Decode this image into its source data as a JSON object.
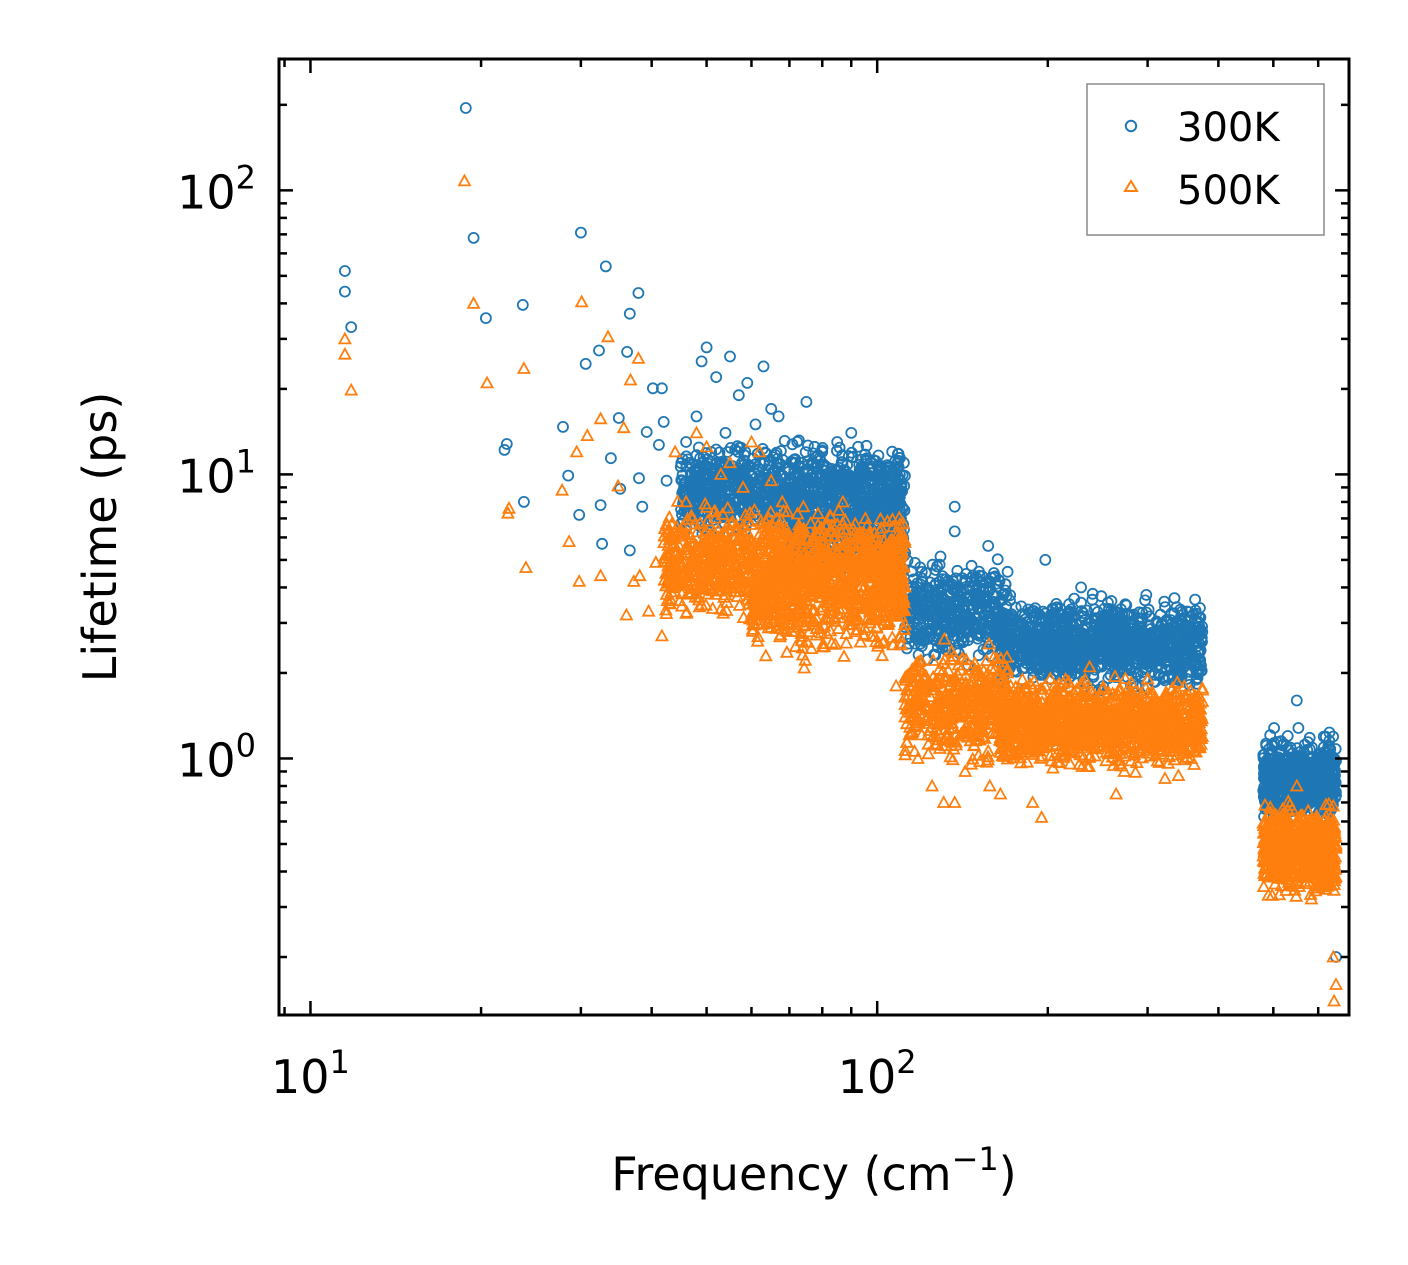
{
  "chart_data": {
    "type": "scatter",
    "title": "",
    "xlabel": "Frequency (cm",
    "xlabel_sup": "−1",
    "xlabel_close": ")",
    "ylabel": "Lifetime (ps)",
    "xscale": "log",
    "yscale": "log",
    "xlim": [
      8.8,
      680
    ],
    "ylim": [
      0.125,
      290
    ],
    "x_ticks": [
      {
        "value": 10,
        "base": "10",
        "exp": "1"
      },
      {
        "value": 100,
        "base": "10",
        "exp": "2"
      }
    ],
    "y_ticks": [
      {
        "value": 1,
        "base": "10",
        "exp": "0"
      },
      {
        "value": 10,
        "base": "10",
        "exp": "1"
      },
      {
        "value": 100,
        "base": "10",
        "exp": "2"
      }
    ],
    "legend_position": "top-right",
    "series": [
      {
        "name": "300K",
        "marker": "circle",
        "color": "#1f77b4",
        "points": [
          [
            11.5,
            52
          ],
          [
            11.5,
            44
          ],
          [
            11.8,
            33
          ],
          [
            18.8,
            195
          ],
          [
            19.4,
            68
          ],
          [
            20.4,
            35.5
          ],
          [
            22.2,
            12.8
          ],
          [
            22.0,
            12.2
          ],
          [
            23.7,
            39.5
          ],
          [
            23.8,
            8.0
          ],
          [
            27.9,
            14.7
          ],
          [
            28.5,
            9.9
          ],
          [
            29.8,
            7.2
          ],
          [
            30.0,
            71
          ],
          [
            30.6,
            24.5
          ],
          [
            32.3,
            27.3
          ],
          [
            32.5,
            7.8
          ],
          [
            32.7,
            5.7
          ],
          [
            33.2,
            54
          ],
          [
            33.9,
            11.4
          ],
          [
            35.0,
            15.8
          ],
          [
            35.2,
            8.9
          ],
          [
            36.2,
            27.0
          ],
          [
            36.6,
            36.8
          ],
          [
            36.6,
            5.4
          ],
          [
            37.9,
            43.5
          ],
          [
            38.0,
            9.7
          ],
          [
            38.5,
            7.7
          ],
          [
            39.2,
            14.1
          ],
          [
            40.2,
            20.1
          ],
          [
            41.2,
            12.7
          ],
          [
            41.7,
            20.1
          ],
          [
            42.0,
            15.3
          ],
          [
            42.5,
            9.5
          ],
          [
            46,
            13
          ],
          [
            47,
            10
          ],
          [
            48,
            16
          ],
          [
            49,
            25
          ],
          [
            50,
            28
          ],
          [
            52,
            22
          ],
          [
            54,
            14
          ],
          [
            55,
            26
          ],
          [
            57,
            19
          ],
          [
            59,
            21
          ],
          [
            61,
            15
          ],
          [
            63,
            24
          ],
          [
            65,
            17
          ],
          [
            67,
            16
          ],
          [
            71,
            11
          ],
          [
            75,
            18
          ],
          [
            80,
            12
          ],
          [
            85,
            13
          ],
          [
            90,
            14
          ],
          [
            95,
            10
          ],
          [
            100,
            8
          ],
          [
            104,
            7.7
          ],
          [
            107,
            7.2
          ],
          [
            112,
            5.3
          ],
          [
            120,
            4.3
          ],
          [
            126,
            3.4
          ],
          [
            131,
            4.0
          ],
          [
            137,
            7.7
          ],
          [
            137,
            6.3
          ],
          [
            143,
            3.0
          ],
          [
            150,
            4.3
          ],
          [
            157,
            5.6
          ],
          [
            165,
            3.6
          ],
          [
            172,
            2.5
          ],
          [
            180,
            2.9
          ],
          [
            188,
            3.3
          ],
          [
            198,
            5.0
          ],
          [
            207,
            3.5
          ],
          [
            217,
            2.9
          ],
          [
            229,
            4.0
          ],
          [
            240,
            3.8
          ],
          [
            253,
            3.2
          ],
          [
            267,
            3.0
          ],
          [
            281,
            3.2
          ],
          [
            297,
            3.6
          ],
          [
            313,
            2.6
          ],
          [
            330,
            2.3
          ],
          [
            348,
            2.1
          ],
          [
            366,
            2.0
          ],
          [
            490,
            0.9
          ],
          [
            510,
            0.8
          ],
          [
            530,
            1.2
          ],
          [
            550,
            1.6
          ],
          [
            570,
            0.9
          ],
          [
            590,
            0.8
          ],
          [
            610,
            1.0
          ],
          [
            625,
            1.1
          ],
          [
            638,
            0.9
          ],
          [
            645,
            0.2
          ]
        ],
        "bands": [
          {
            "x": [
              45,
              112
            ],
            "y": [
              5.5,
              14
            ],
            "n": 1100
          },
          {
            "x": [
              70,
              112
            ],
            "y": [
              3.8,
              9.5
            ],
            "n": 450
          },
          {
            "x": [
              112,
              170
            ],
            "y": [
              2.0,
              5.5
            ],
            "n": 450
          },
          {
            "x": [
              165,
              375
            ],
            "y": [
              1.6,
              4.0
            ],
            "n": 1200
          },
          {
            "x": [
              480,
              645
            ],
            "y": [
              0.55,
              1.3
            ],
            "n": 700
          }
        ]
      },
      {
        "name": "500K",
        "marker": "triangle",
        "color": "#ff7f0e",
        "points": [
          [
            11.5,
            30
          ],
          [
            11.5,
            26.5
          ],
          [
            11.8,
            19.8
          ],
          [
            18.7,
            108
          ],
          [
            19.4,
            40
          ],
          [
            20.5,
            21
          ],
          [
            22.3,
            7.3
          ],
          [
            22.4,
            7.6
          ],
          [
            23.8,
            23.6
          ],
          [
            24.0,
            4.7
          ],
          [
            27.8,
            8.8
          ],
          [
            28.6,
            5.8
          ],
          [
            29.5,
            12.0
          ],
          [
            29.8,
            4.2
          ],
          [
            30.1,
            40.5
          ],
          [
            30.8,
            13.7
          ],
          [
            32.5,
            15.7
          ],
          [
            32.5,
            4.4
          ],
          [
            33.5,
            30.5
          ],
          [
            34.9,
            9.1
          ],
          [
            35.7,
            14.6
          ],
          [
            36.1,
            3.2
          ],
          [
            36.7,
            21.5
          ],
          [
            37.2,
            4.2
          ],
          [
            37.9,
            25.6
          ],
          [
            38.1,
            4.4
          ],
          [
            39.5,
            3.3
          ],
          [
            40.7,
            4.9
          ],
          [
            41.7,
            2.7
          ],
          [
            42.5,
            6.7
          ],
          [
            43.0,
            3.5
          ],
          [
            44,
            12
          ],
          [
            46,
            8
          ],
          [
            48,
            14
          ],
          [
            50,
            12.5
          ],
          [
            53,
            10
          ],
          [
            55,
            11
          ],
          [
            58,
            9
          ],
          [
            60,
            13
          ],
          [
            62,
            12
          ],
          [
            65,
            9.5
          ],
          [
            68,
            8
          ],
          [
            73,
            6.5
          ],
          [
            78,
            5
          ],
          [
            83,
            4.5
          ],
          [
            88,
            4
          ],
          [
            92,
            3.5
          ],
          [
            97,
            3
          ],
          [
            102,
            2.3
          ],
          [
            108,
            1.8
          ],
          [
            112,
            1.4
          ],
          [
            118,
            1.0
          ],
          [
            125,
            0.8
          ],
          [
            131,
            0.7
          ],
          [
            137,
            0.7
          ],
          [
            143,
            0.9
          ],
          [
            150,
            1.4
          ],
          [
            158,
            0.8
          ],
          [
            165,
            0.75
          ],
          [
            172,
            1.8
          ],
          [
            180,
            1.5
          ],
          [
            188,
            0.7
          ],
          [
            195,
            0.62
          ],
          [
            205,
            1.2
          ],
          [
            215,
            1.9
          ],
          [
            225,
            1.5
          ],
          [
            237,
            2.1
          ],
          [
            250,
            1.1
          ],
          [
            264,
            0.75
          ],
          [
            278,
            1.4
          ],
          [
            292,
            1.6
          ],
          [
            306,
            1.2
          ],
          [
            322,
            0.85
          ],
          [
            340,
            0.87
          ],
          [
            358,
            1.0
          ],
          [
            490,
            0.33
          ],
          [
            510,
            0.4
          ],
          [
            530,
            0.6
          ],
          [
            550,
            0.8
          ],
          [
            570,
            0.45
          ],
          [
            590,
            0.35
          ],
          [
            610,
            0.55
          ],
          [
            625,
            0.6
          ],
          [
            638,
            0.2
          ],
          [
            645,
            0.16
          ],
          [
            640,
            0.14
          ]
        ],
        "bands": [
          {
            "x": [
              42,
              112
            ],
            "y": [
              2.8,
              8.5
            ],
            "n": 1100
          },
          {
            "x": [
              60,
              112
            ],
            "y": [
              2.0,
              6.5
            ],
            "n": 450
          },
          {
            "x": [
              112,
              170
            ],
            "y": [
              0.85,
              2.8
            ],
            "n": 450
          },
          {
            "x": [
              165,
              375
            ],
            "y": [
              0.85,
              2.1
            ],
            "n": 1200
          },
          {
            "x": [
              480,
              645
            ],
            "y": [
              0.3,
              0.75
            ],
            "n": 700
          }
        ]
      }
    ]
  }
}
